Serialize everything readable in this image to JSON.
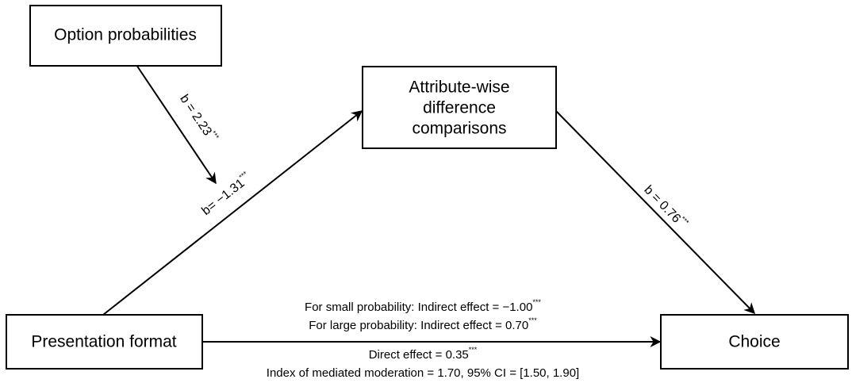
{
  "nodes": [
    {
      "label": [
        "Option probabilities"
      ]
    },
    {
      "label": [
        "Attribute-wise",
        "difference",
        "comparisons"
      ]
    },
    {
      "label": [
        "Presentation format"
      ]
    },
    {
      "label": [
        "Choice"
      ]
    }
  ],
  "edges": [
    {
      "label": "b = 2.23",
      "sup": "***"
    },
    {
      "label": "b= −1.31",
      "sup": "***"
    },
    {
      "label": "b = 0.76",
      "sup": "***"
    }
  ],
  "annotations": [
    {
      "text": "For small probability: Indirect effect = −1.00",
      "sup": "***"
    },
    {
      "text": "For large probability: Indirect effect = 0.70",
      "sup": "***"
    },
    {
      "text": "Direct effect = 0.35",
      "sup": "***"
    },
    {
      "text": "Index of mediated moderation = 1.70, 95% CI = [1.50, 1.90]"
    }
  ]
}
